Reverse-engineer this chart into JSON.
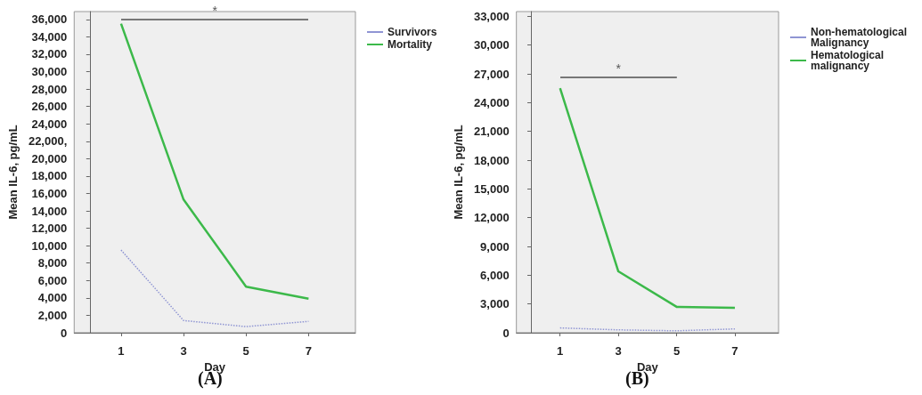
{
  "chart_data": [
    {
      "type": "line",
      "xlabel": "Day",
      "ylabel": "Mean IL-6, pg/mL",
      "x": [
        1,
        3,
        5,
        7
      ],
      "series": [
        {
          "name": "Survivors",
          "color": "#8f95d3",
          "line_style": "dotted",
          "values": [
            9500,
            1400,
            700,
            1300
          ]
        },
        {
          "name": "Mortality",
          "color": "#3cb94a",
          "line_style": "solid",
          "values": [
            35500,
            15300,
            5300,
            3900
          ]
        }
      ],
      "xlim": [
        -0.5,
        8.5
      ],
      "xticks": [
        1,
        3,
        5,
        7
      ],
      "ylim": [
        0,
        36900
      ],
      "yticks": [
        0,
        {
          "value": 2000,
          "label": "2,000"
        },
        {
          "value": 4000,
          "label": "4,000"
        },
        {
          "value": 6000,
          "label": "6,000"
        },
        {
          "value": 8000,
          "label": "8,000"
        },
        {
          "value": 10000,
          "label": "10,000"
        },
        {
          "value": 12000,
          "label": "12,000"
        },
        {
          "value": 14000,
          "label": "14,000"
        },
        {
          "value": 16000,
          "label": "16,000"
        },
        {
          "value": 18000,
          "label": "18,000"
        },
        {
          "value": 20000,
          "label": "20,000"
        },
        {
          "value": 22000,
          "label": "22,000,"
        },
        {
          "value": 24000,
          "label": "24,000"
        },
        {
          "value": 26000,
          "label": "26,000"
        },
        {
          "value": 28000,
          "label": "28,000"
        },
        {
          "value": 30000,
          "label": "30,000"
        },
        {
          "value": 32000,
          "label": "32,000"
        },
        {
          "value": 34000,
          "label": "34,000"
        },
        {
          "value": 36000,
          "label": "36,000"
        }
      ],
      "grid": false,
      "legend": "top right",
      "marker": "none",
      "annotations": [
        "*",
        "(A)"
      ]
    },
    {
      "type": "line",
      "xlabel": "Day",
      "ylabel": "Mean IL-6, pg/mL",
      "x": [
        1,
        3,
        5,
        7
      ],
      "series": [
        {
          "name": "Non-hematological Malignancy",
          "color": "#8f95d3",
          "line_style": "dotted",
          "values": [
            500,
            300,
            200,
            400
          ]
        },
        {
          "name": "Hematological malignancy",
          "color": "#3cb94a",
          "line_style": "solid",
          "values": [
            25500,
            6400,
            2700,
            2600
          ]
        }
      ],
      "xlim": [
        -0.5,
        8.5
      ],
      "xticks": [
        1,
        3,
        5,
        7
      ],
      "ylim": [
        0,
        33500
      ],
      "yticks": [
        0,
        {
          "value": 3000,
          "label": "3,000"
        },
        {
          "value": 6000,
          "label": "6,000"
        },
        {
          "value": 9000,
          "label": "9,000"
        },
        {
          "value": 12000,
          "label": "12,000"
        },
        {
          "value": 15000,
          "label": "15,000"
        },
        {
          "value": 18000,
          "label": "18,000"
        },
        {
          "value": 21000,
          "label": "21,000"
        },
        {
          "value": 24000,
          "label": "24,000"
        },
        {
          "value": 27000,
          "label": "27,000"
        },
        {
          "value": 30000,
          "label": "30,000"
        },
        {
          "value": 33000,
          "label": "33,000"
        }
      ],
      "grid": false,
      "legend": "top right",
      "marker": "none",
      "annotations": [
        "*",
        "(B)"
      ]
    }
  ]
}
